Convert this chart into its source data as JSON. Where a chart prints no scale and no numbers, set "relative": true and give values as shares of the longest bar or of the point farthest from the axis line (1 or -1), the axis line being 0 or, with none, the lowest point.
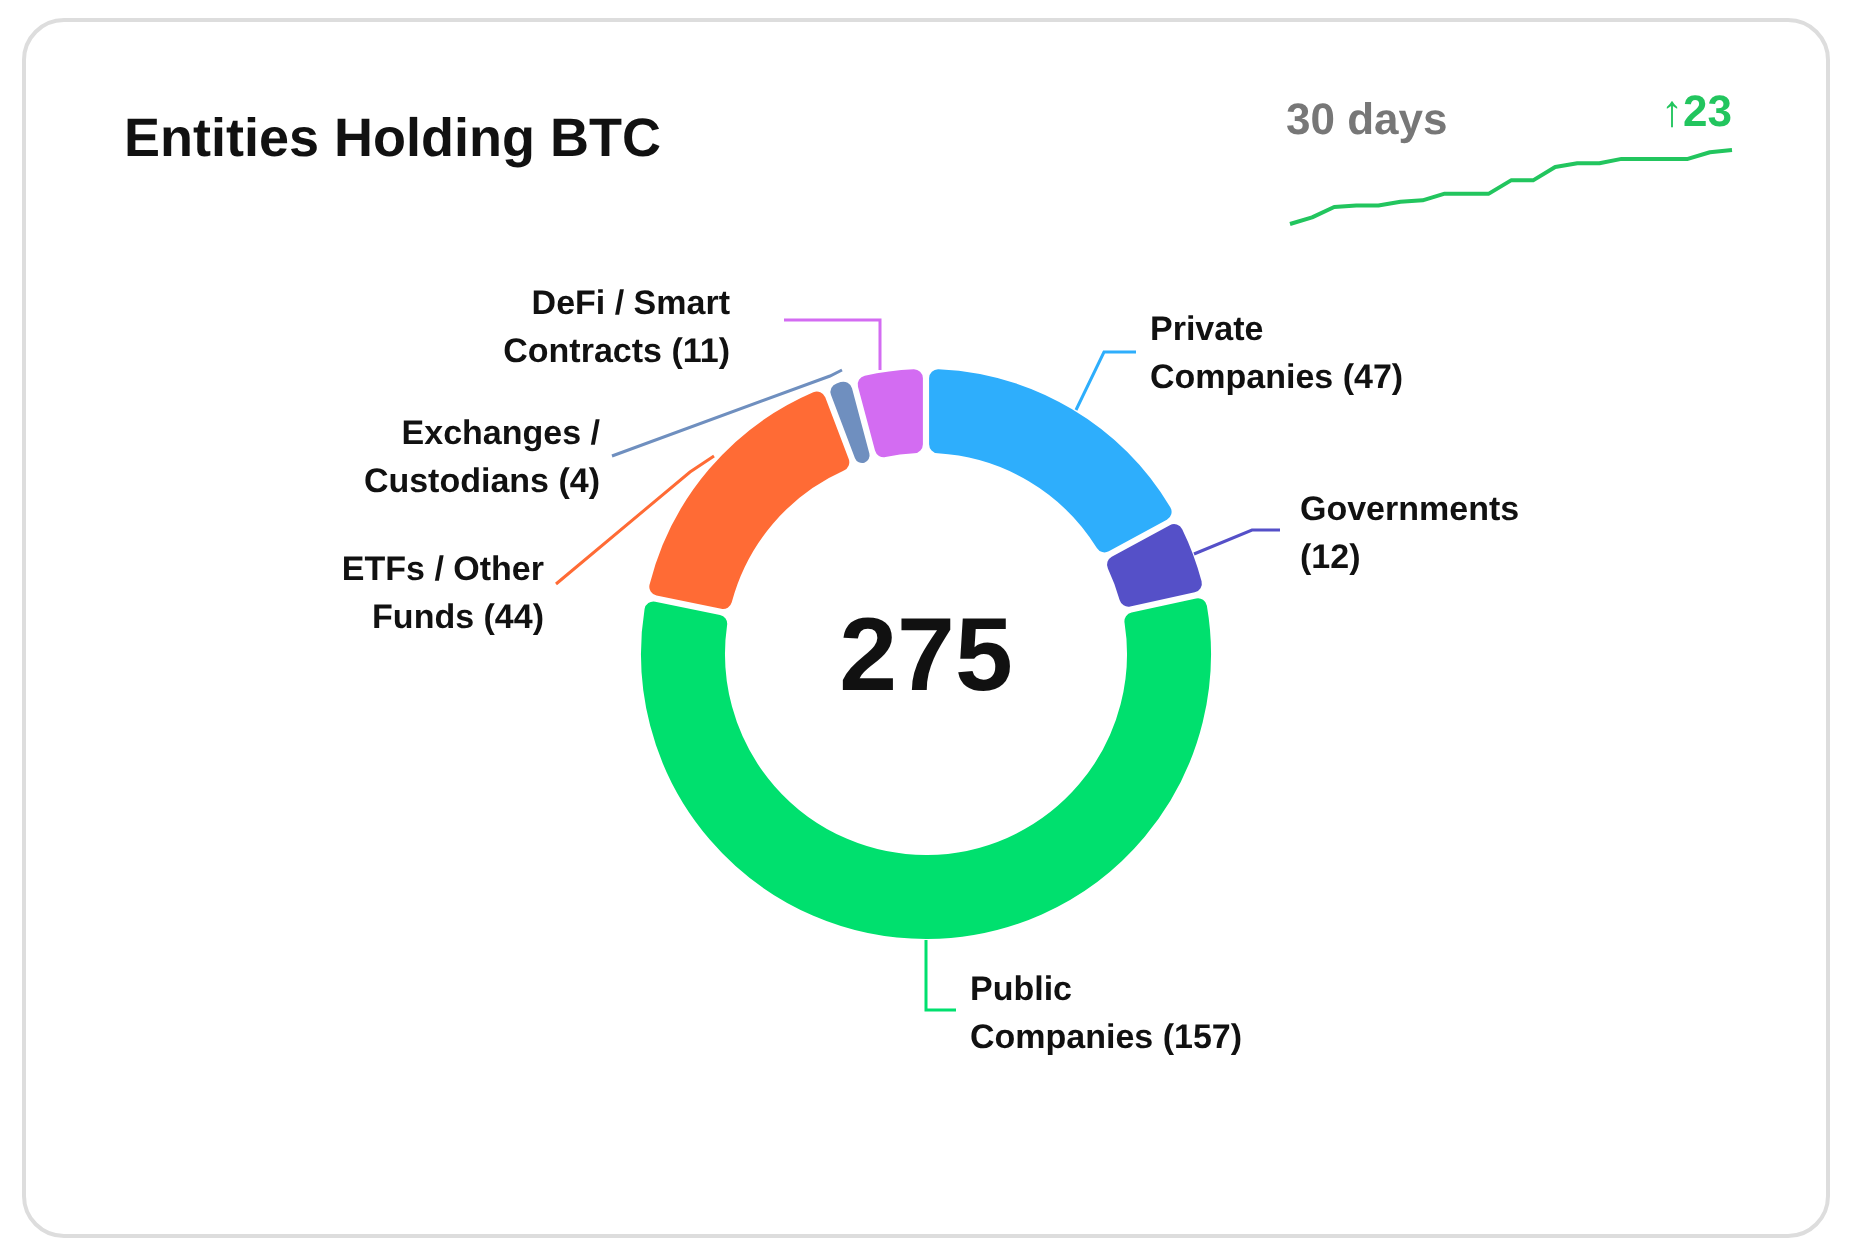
{
  "chart_data": [
    {
      "type": "donut",
      "title": "Entities Holding BTC",
      "categories": [
        "Private Companies",
        "Governments",
        "Public Companies",
        "ETFs / Other Funds",
        "Exchanges / Custodians",
        "DeFi / Smart Contracts"
      ],
      "values": [
        47,
        12,
        157,
        44,
        4,
        11
      ],
      "colors": [
        "#2eaefc",
        "#5550c8",
        "#00e06e",
        "#ff6b35",
        "#6f8fbf",
        "#d36cf2"
      ],
      "value_labels": [
        "(47)",
        "(12)",
        "(157)",
        "(44)",
        "(4)",
        "(11)"
      ],
      "annotations": [
        "275"
      ]
    },
    {
      "type": "line",
      "title": "30 days",
      "relative": true,
      "categories": [
        null,
        null,
        null,
        null,
        null,
        null,
        null,
        null,
        null,
        null,
        null,
        null,
        null,
        null,
        null,
        null,
        null,
        null,
        null,
        null,
        null
      ],
      "series": [
        {
          "color": "#22c55e",
          "values": [
            0,
            0.09,
            0.23,
            0.25,
            0.25,
            0.3,
            0.32,
            0.41,
            0.41,
            0.41,
            0.59,
            0.59,
            0.77,
            0.82,
            0.82,
            0.88,
            0.88,
            0.88,
            0.88,
            0.97,
            1
          ]
        }
      ],
      "annotations": [
        "↑23"
      ]
    }
  ]
}
